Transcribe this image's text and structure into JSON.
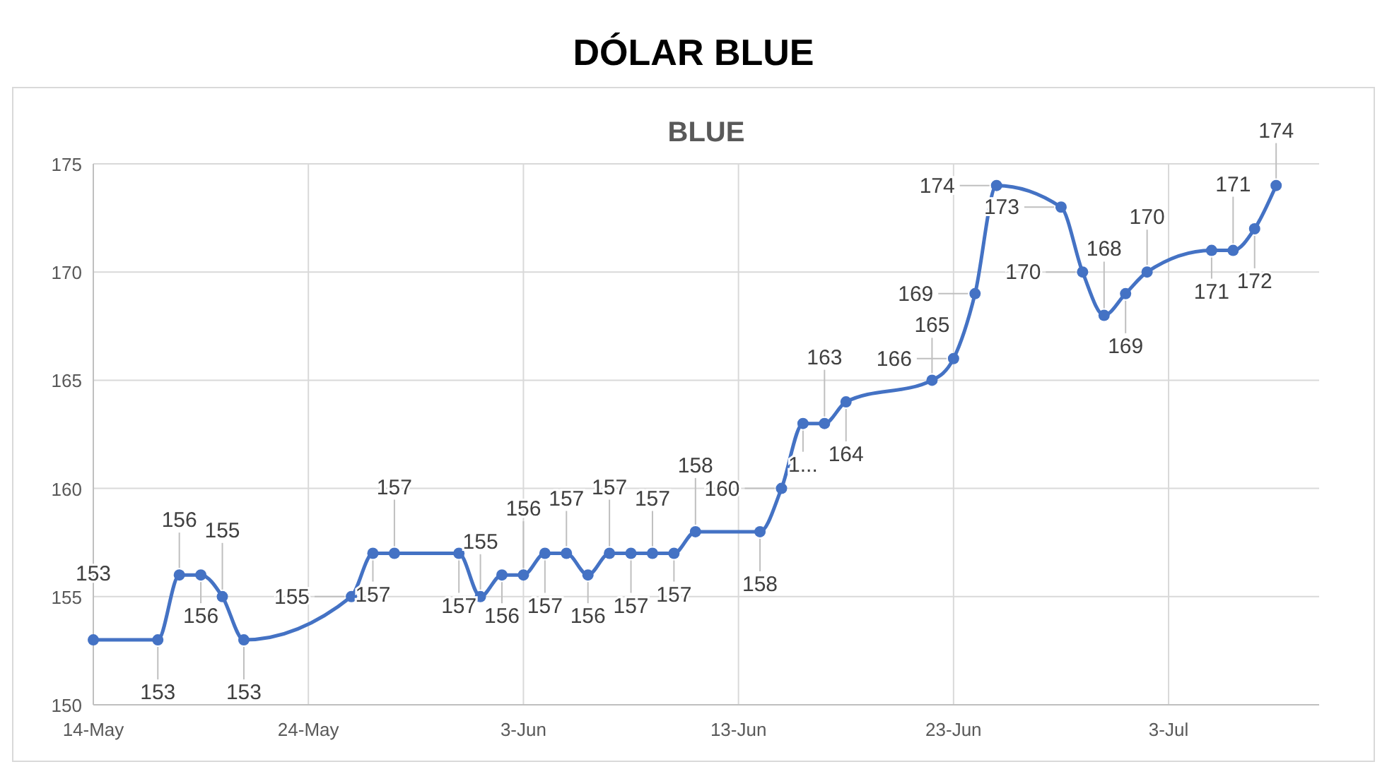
{
  "chart_data": {
    "type": "line",
    "title": "DÓLAR BLUE",
    "subtitle": "BLUE",
    "x": [
      "--05-14",
      "--05-17",
      "--05-18",
      "--05-19",
      "--05-20",
      "--05-21",
      "--05-26",
      "--05-27",
      "--05-28",
      "--05-31",
      "--06-01",
      "--06-02",
      "--06-03",
      "--06-04",
      "--06-05",
      "--06-06",
      "--06-07",
      "--06-08",
      "--06-09",
      "--06-10",
      "--06-11",
      "--06-14",
      "--06-15",
      "--06-16",
      "--06-17",
      "--06-18",
      "--06-22",
      "--06-23",
      "--06-24",
      "--06-25",
      "--06-28",
      "--06-29",
      "--06-30",
      "--07-01",
      "--07-02",
      "--07-05",
      "--07-06",
      "--07-07",
      "--07-08"
    ],
    "series": [
      {
        "color": "#4472c4",
        "values": [
          153,
          153,
          156,
          156,
          155,
          153,
          155,
          157,
          157,
          157,
          155,
          156,
          156,
          157,
          157,
          156,
          157,
          157,
          157,
          157,
          158,
          158,
          160,
          163,
          163,
          164,
          165,
          166,
          169,
          174,
          173,
          170,
          168,
          169,
          170,
          171,
          171,
          172,
          174
        ],
        "value_labels": [
          "153",
          "153",
          "156",
          "156",
          "155",
          "153",
          "155",
          "157",
          "157",
          "157",
          "155",
          "156",
          "156",
          "157",
          "157",
          "156",
          "157",
          "157",
          "157",
          "157",
          "158",
          "158",
          "160",
          "1...",
          "163",
          "164",
          "165",
          "166",
          "169",
          "174",
          "173",
          "170",
          "168",
          "169",
          "170",
          "171",
          "171",
          "172",
          "174"
        ]
      }
    ],
    "xlim": [
      "--05-14",
      "--07-10"
    ],
    "xticks": [
      {
        "value": "--05-14",
        "label": "14-May"
      },
      {
        "value": "--05-24",
        "label": "24-May"
      },
      {
        "value": "--06-03",
        "label": "3-Jun"
      },
      {
        "value": "--06-13",
        "label": "13-Jun"
      },
      {
        "value": "--06-23",
        "label": "23-Jun"
      },
      {
        "value": "--07-03",
        "label": "3-Jul"
      }
    ],
    "ylim": [
      150,
      175
    ],
    "yticks": [
      150,
      155,
      160,
      165,
      170,
      175
    ],
    "grid": true,
    "marker": "circle",
    "line_style": "solid"
  }
}
